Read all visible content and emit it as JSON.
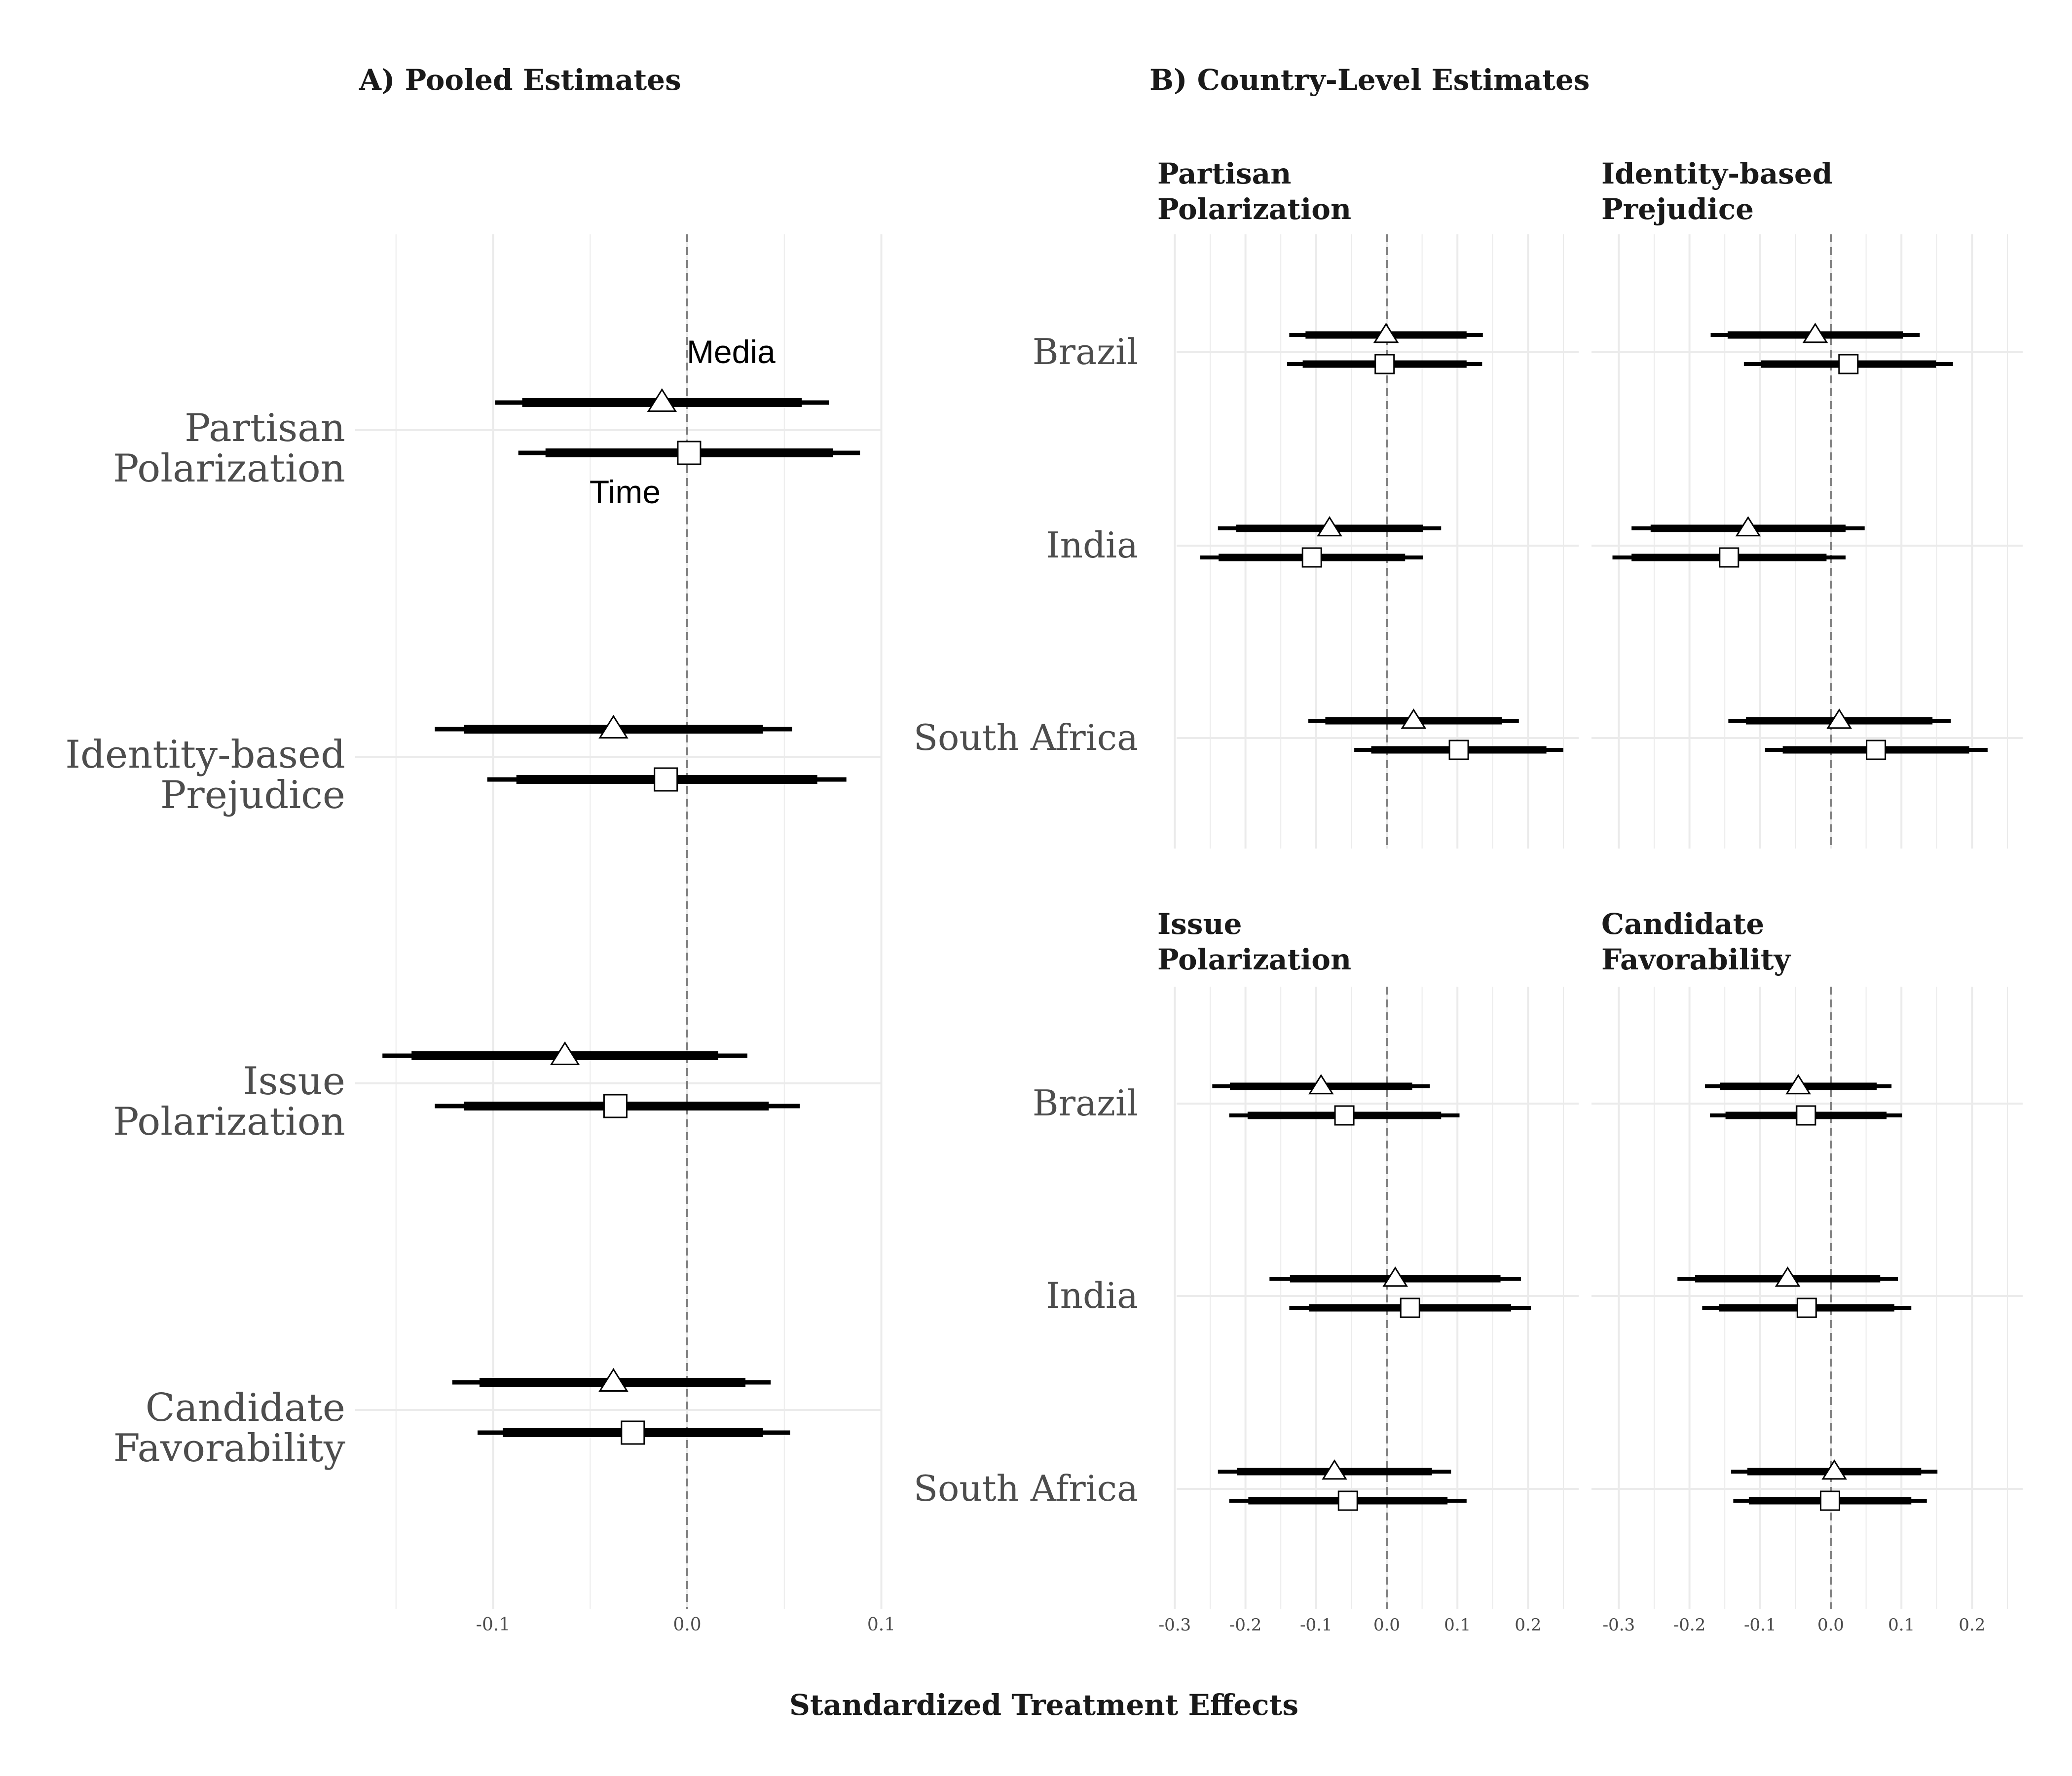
{
  "panel_a": {
    "title": "A) Pooled Estimates"
  },
  "panel_b": {
    "title": "B) Country-Level Estimates"
  },
  "x_axis_title": "Standardized Treatment Effects",
  "colors": {
    "grid": "#ebebeb",
    "zero_line": "#7f7f7f",
    "ci": "#000000",
    "marker_fill": "#ffffff",
    "axis_text": "#4d4d4d",
    "title_text": "#1a1a1a"
  },
  "chart_data": [
    {
      "type": "forest",
      "title": "A) Pooled Estimates",
      "categories": [
        "Partisan Polarization",
        "Identity-based Prejudice",
        "Issue Polarization",
        "Candidate Favorability"
      ],
      "category_labels": [
        [
          "Partisan",
          "Polarization"
        ],
        [
          "Identity-based",
          "Prejudice"
        ],
        [
          "Issue",
          "Polarization"
        ],
        [
          "Candidate",
          "Favorability"
        ]
      ],
      "x_ticks": [
        -0.1,
        0.0,
        0.1
      ],
      "x_tick_labels": [
        "-0.1",
        "0.0",
        "0.1"
      ],
      "xlim": [
        -0.15,
        0.1
      ],
      "reference_line": 0,
      "annotations": [
        {
          "text": "Media",
          "near": "Partisan Polarization, Media estimate"
        },
        {
          "text": "Time",
          "near": "Partisan Polarization, Time estimate"
        }
      ],
      "series": [
        {
          "name": "Media",
          "marker": "triangle",
          "estimates": [
            {
              "estimate": -0.013,
              "ci90": [
                -0.085,
                0.059
              ],
              "ci95": [
                -0.099,
                0.073
              ]
            },
            {
              "estimate": -0.038,
              "ci90": [
                -0.115,
                0.039
              ],
              "ci95": [
                -0.13,
                0.054
              ]
            },
            {
              "estimate": -0.063,
              "ci90": [
                -0.142,
                0.016
              ],
              "ci95": [
                -0.157,
                0.031
              ]
            },
            {
              "estimate": -0.038,
              "ci90": [
                -0.107,
                0.03
              ],
              "ci95": [
                -0.121,
                0.043
              ]
            }
          ]
        },
        {
          "name": "Time",
          "marker": "square",
          "estimates": [
            {
              "estimate": 0.001,
              "ci90": [
                -0.073,
                0.075
              ],
              "ci95": [
                -0.087,
                0.089
              ]
            },
            {
              "estimate": -0.011,
              "ci90": [
                -0.088,
                0.067
              ],
              "ci95": [
                -0.103,
                0.082
              ]
            },
            {
              "estimate": -0.037,
              "ci90": [
                -0.115,
                0.042
              ],
              "ci95": [
                -0.13,
                0.058
              ]
            },
            {
              "estimate": -0.028,
              "ci90": [
                -0.095,
                0.039
              ],
              "ci95": [
                -0.108,
                0.053
              ]
            }
          ]
        }
      ]
    },
    {
      "type": "forest",
      "title": "Partisan Polarization",
      "title_lines": [
        "Partisan",
        "Polarization"
      ],
      "categories": [
        "Brazil",
        "India",
        "South Africa"
      ],
      "x_ticks": [
        -0.3,
        -0.2,
        -0.1,
        0.0,
        0.1,
        0.2
      ],
      "x_tick_labels": [
        "-0.3",
        "-0.2",
        "-0.1",
        "0.0",
        "0.1",
        "0.2"
      ],
      "xlim": [
        -0.3,
        0.25
      ],
      "reference_line": 0,
      "series": [
        {
          "name": "Media",
          "marker": "triangle",
          "estimates": [
            {
              "estimate": -0.001,
              "ci90": [
                -0.115,
                0.113
              ],
              "ci95": [
                -0.138,
                0.136
              ]
            },
            {
              "estimate": -0.081,
              "ci90": [
                -0.213,
                0.051
              ],
              "ci95": [
                -0.239,
                0.077
              ]
            },
            {
              "estimate": 0.038,
              "ci90": [
                -0.087,
                0.163
              ],
              "ci95": [
                -0.111,
                0.187
              ]
            }
          ]
        },
        {
          "name": "Time",
          "marker": "square",
          "estimates": [
            {
              "estimate": -0.003,
              "ci90": [
                -0.119,
                0.113
              ],
              "ci95": [
                -0.141,
                0.135
              ]
            },
            {
              "estimate": -0.106,
              "ci90": [
                -0.238,
                0.026
              ],
              "ci95": [
                -0.264,
                0.051
              ]
            },
            {
              "estimate": 0.102,
              "ci90": [
                -0.022,
                0.226
              ],
              "ci95": [
                -0.046,
                0.25
              ]
            }
          ]
        }
      ]
    },
    {
      "type": "forest",
      "title": "Identity-based Prejudice",
      "title_lines": [
        "Identity-based",
        "Prejudice"
      ],
      "categories": [
        "Brazil",
        "India",
        "South Africa"
      ],
      "x_ticks": [
        -0.3,
        -0.2,
        -0.1,
        0.0,
        0.1,
        0.2
      ],
      "x_tick_labels": [
        "-0.3",
        "-0.2",
        "-0.1",
        "0.0",
        "0.1",
        "0.2"
      ],
      "xlim": [
        -0.3,
        0.25
      ],
      "reference_line": 0,
      "series": [
        {
          "name": "Media",
          "marker": "triangle",
          "estimates": [
            {
              "estimate": -0.022,
              "ci90": [
                -0.146,
                0.102
              ],
              "ci95": [
                -0.17,
                0.126
              ]
            },
            {
              "estimate": -0.117,
              "ci90": [
                -0.255,
                0.021
              ],
              "ci95": [
                -0.282,
                0.048
              ]
            },
            {
              "estimate": 0.012,
              "ci90": [
                -0.12,
                0.144
              ],
              "ci95": [
                -0.145,
                0.17
              ]
            }
          ]
        },
        {
          "name": "Time",
          "marker": "square",
          "estimates": [
            {
              "estimate": 0.025,
              "ci90": [
                -0.099,
                0.149
              ],
              "ci95": [
                -0.123,
                0.173
              ]
            },
            {
              "estimate": -0.144,
              "ci90": [
                -0.282,
                -0.006
              ],
              "ci95": [
                -0.309,
                0.021
              ]
            },
            {
              "estimate": 0.064,
              "ci90": [
                -0.068,
                0.196
              ],
              "ci95": [
                -0.093,
                0.222
              ]
            }
          ]
        }
      ]
    },
    {
      "type": "forest",
      "title": "Issue Polarization",
      "title_lines": [
        "Issue",
        "Polarization"
      ],
      "categories": [
        "Brazil",
        "India",
        "South Africa"
      ],
      "x_ticks": [
        -0.3,
        -0.2,
        -0.1,
        0.0,
        0.1,
        0.2
      ],
      "x_tick_labels": [
        "-0.3",
        "-0.2",
        "-0.1",
        "0.0",
        "0.1",
        "0.2"
      ],
      "xlim": [
        -0.3,
        0.25
      ],
      "reference_line": 0,
      "series": [
        {
          "name": "Media",
          "marker": "triangle",
          "estimates": [
            {
              "estimate": -0.093,
              "ci90": [
                -0.222,
                0.036
              ],
              "ci95": [
                -0.247,
                0.061
              ]
            },
            {
              "estimate": 0.012,
              "ci90": [
                -0.137,
                0.161
              ],
              "ci95": [
                -0.166,
                0.19
              ]
            },
            {
              "estimate": -0.074,
              "ci90": [
                -0.212,
                0.064
              ],
              "ci95": [
                -0.239,
                0.091
              ]
            }
          ]
        },
        {
          "name": "Time",
          "marker": "square",
          "estimates": [
            {
              "estimate": -0.06,
              "ci90": [
                -0.197,
                0.077
              ],
              "ci95": [
                -0.223,
                0.103
              ]
            },
            {
              "estimate": 0.033,
              "ci90": [
                -0.11,
                0.176
              ],
              "ci95": [
                -0.138,
                0.204
              ]
            },
            {
              "estimate": -0.055,
              "ci90": [
                -0.196,
                0.086
              ],
              "ci95": [
                -0.223,
                0.113
              ]
            }
          ]
        }
      ]
    },
    {
      "type": "forest",
      "title": "Candidate Favorability",
      "title_lines": [
        "Candidate",
        "Favorability"
      ],
      "categories": [
        "Brazil",
        "India",
        "South Africa"
      ],
      "x_ticks": [
        -0.3,
        -0.2,
        -0.1,
        0.0,
        0.1,
        0.2
      ],
      "x_tick_labels": [
        "-0.3",
        "-0.2",
        "-0.1",
        "0.0",
        "0.1",
        "0.2"
      ],
      "xlim": [
        -0.3,
        0.25
      ],
      "reference_line": 0,
      "series": [
        {
          "name": "Media",
          "marker": "triangle",
          "estimates": [
            {
              "estimate": -0.046,
              "ci90": [
                -0.157,
                0.065
              ],
              "ci95": [
                -0.178,
                0.086
              ]
            },
            {
              "estimate": -0.061,
              "ci90": [
                -0.192,
                0.07
              ],
              "ci95": [
                -0.217,
                0.095
              ]
            },
            {
              "estimate": 0.005,
              "ci90": [
                -0.118,
                0.128
              ],
              "ci95": [
                -0.141,
                0.151
              ]
            }
          ]
        },
        {
          "name": "Time",
          "marker": "square",
          "estimates": [
            {
              "estimate": -0.035,
              "ci90": [
                -0.149,
                0.079
              ],
              "ci95": [
                -0.171,
                0.101
              ]
            },
            {
              "estimate": -0.034,
              "ci90": [
                -0.158,
                0.09
              ],
              "ci95": [
                -0.182,
                0.114
              ]
            },
            {
              "estimate": -0.001,
              "ci90": [
                -0.116,
                0.114
              ],
              "ci95": [
                -0.138,
                0.136
              ]
            }
          ]
        }
      ]
    }
  ]
}
